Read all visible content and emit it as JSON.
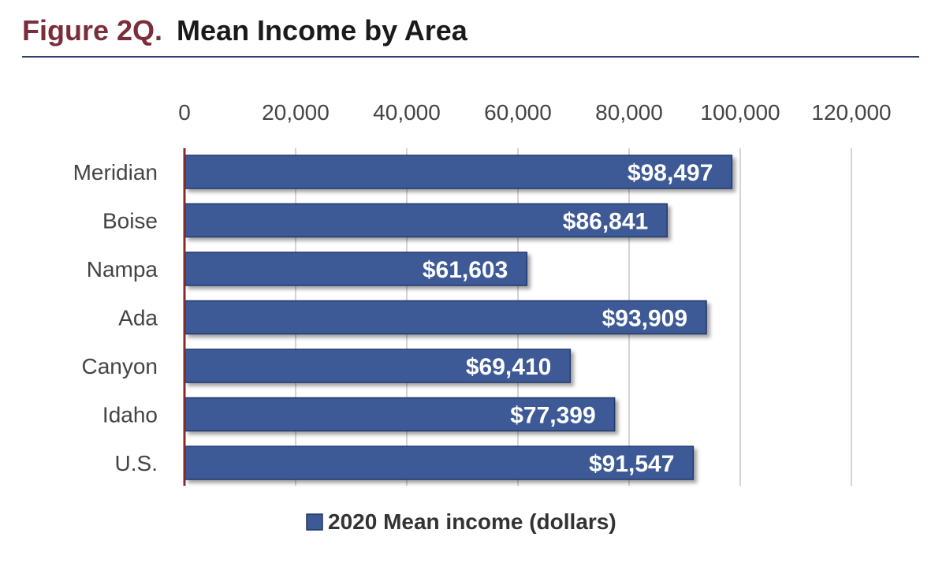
{
  "figure": {
    "label": "Figure 2Q.",
    "title": "Mean Income by Area"
  },
  "colors": {
    "bar_fill": "#3d5a96",
    "bar_stroke": "#22376a",
    "axis_line": "#8b2a2a",
    "gridline": "#d4d4d4",
    "figure_label": "#7a2e3a",
    "rule": "#2e3f6e"
  },
  "chart_data": {
    "type": "bar",
    "orientation": "horizontal",
    "title": "",
    "xlabel": "",
    "ylabel": "",
    "xlim": [
      0,
      120000
    ],
    "x_ticks": [
      0,
      20000,
      40000,
      60000,
      80000,
      100000,
      120000
    ],
    "x_tick_labels": [
      "0",
      "20,000",
      "40,000",
      "60,000",
      "80,000",
      "100,000",
      "120,000"
    ],
    "x_axis_position": "top",
    "grid": true,
    "categories": [
      "Meridian",
      "Boise",
      "Nampa",
      "Ada",
      "Canyon",
      "Idaho",
      "U.S."
    ],
    "series": [
      {
        "name": "2020 Mean income (dollars)",
        "values": [
          98497,
          86841,
          61603,
          93909,
          69410,
          77399,
          91547
        ],
        "data_labels": [
          "$98,497",
          "$86,841",
          "$61,603",
          "$93,909",
          "$69,410",
          "$77,399",
          "$91,547"
        ]
      }
    ],
    "legend": {
      "position": "bottom",
      "entries": [
        "2020 Mean income (dollars)"
      ]
    }
  }
}
